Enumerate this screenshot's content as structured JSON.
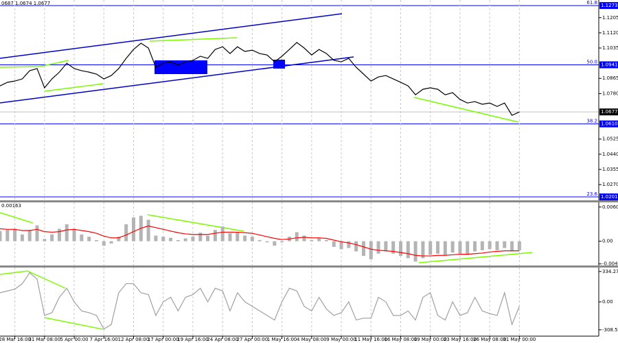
{
  "chart_data": [
    {
      "type": "line",
      "title": "0687 1.0674 1.0677",
      "color": "#000000",
      "x": [
        0,
        1,
        2,
        3,
        4,
        5,
        6,
        7,
        8,
        9,
        10,
        11,
        12,
        13,
        14,
        15,
        16,
        17,
        18,
        19,
        20,
        21,
        22,
        23,
        24,
        25,
        26,
        27,
        28,
        29,
        30,
        31,
        32,
        33,
        34,
        35,
        36,
        37,
        38,
        39,
        40,
        41,
        42,
        43,
        44,
        45,
        46,
        47,
        48,
        49,
        50,
        51,
        52,
        53,
        54,
        55,
        56,
        57,
        58,
        59,
        60,
        61,
        62,
        63,
        64,
        65,
        66,
        67,
        68,
        69,
        70
      ],
      "values": [
        1.0823,
        1.0843,
        1.085,
        1.0862,
        1.0908,
        1.092,
        1.0812,
        1.0862,
        1.09,
        1.095,
        1.092,
        1.0908,
        1.09,
        1.0889,
        1.0862,
        1.0881,
        1.092,
        1.0977,
        1.1027,
        1.1062,
        1.1035,
        1.0927,
        1.095,
        1.0958,
        1.0939,
        1.0958,
        1.0966,
        1.0989,
        1.0977,
        1.1027,
        1.1042,
        1.1004,
        1.1042,
        1.1016,
        1.1023,
        1.1004,
        1.0996,
        1.0958,
        1.0989,
        1.1027,
        1.1066,
        1.1035,
        1.0996,
        1.1027,
        1.1004,
        1.0966,
        1.0958,
        1.0977,
        1.0927,
        1.0889,
        1.085,
        1.0873,
        1.0881,
        1.0862,
        1.0843,
        1.0823,
        1.0773,
        1.0804,
        1.0812,
        1.0804,
        1.0773,
        1.0785,
        1.0747,
        1.0727,
        1.0735,
        1.072,
        1.0727,
        1.0708,
        1.0727,
        1.0658,
        1.0677
      ],
      "xlim": [
        0,
        80.7
      ],
      "ylim": [
        1.0182,
        1.1304
      ],
      "yticks": [
        1.1205,
        {
          "value": 1.112,
          "label": "1.1120"
        },
        1.1035,
        1.0865,
        {
          "value": 1.078,
          "label": "1.0780"
        },
        1.0525,
        {
          "value": 1.044,
          "label": "1.0440"
        },
        1.0355,
        {
          "value": 1.027,
          "label": "1.0270"
        }
      ],
      "levels": [
        {
          "value": 1.1273,
          "ratio": "61.8"
        },
        {
          "value": 1.0941,
          "ratio": "50.0"
        },
        {
          "value": 1.061,
          "label": "1.0610",
          "ratio": "38.2"
        },
        {
          "value": 1.0201,
          "ratio": "23.6"
        }
      ],
      "level_color": "#0000ff",
      "current_price": 1.0677
    },
    {
      "type": "macd",
      "title": "0.00163",
      "x": [
        0,
        1,
        2,
        3,
        4,
        5,
        6,
        7,
        8,
        9,
        10,
        11,
        12,
        13,
        14,
        15,
        16,
        17,
        18,
        19,
        20,
        21,
        22,
        23,
        24,
        25,
        26,
        27,
        28,
        29,
        30,
        31,
        32,
        33,
        34,
        35,
        36,
        37,
        38,
        39,
        40,
        41,
        42,
        43,
        44,
        45,
        46,
        47,
        48,
        49,
        50,
        51,
        52,
        53,
        54,
        55,
        56,
        57,
        58,
        59,
        60,
        61,
        62,
        63,
        64,
        65,
        66,
        67,
        68,
        69,
        70
      ],
      "series": [
        {
          "style": "bar",
          "color": "#b4b4b4",
          "values": [
            0.0018,
            0.002,
            0.0022,
            0.0012,
            0.002,
            0.0028,
            0.0004,
            0.0012,
            0.0022,
            0.003,
            0.0022,
            0.0012,
            0.0008,
            0.0002,
            -0.0008,
            -0.0004,
            0.0008,
            0.003,
            0.0042,
            0.0045,
            0.0038,
            0.001,
            0.0008,
            0.0006,
            0.0002,
            0.0005,
            0.0008,
            0.0015,
            0.001,
            0.002,
            0.0026,
            0.0014,
            0.0016,
            0.001,
            0.0008,
            0.0002,
            -0.0002,
            -0.0008,
            -0.0002,
            0.0008,
            0.0016,
            0.001,
            0.0002,
            0.0006,
            0.0002,
            -0.001,
            -0.0014,
            -0.0012,
            -0.0018,
            -0.0026,
            -0.0032,
            -0.0022,
            -0.0018,
            -0.0022,
            -0.0026,
            -0.003,
            -0.0036,
            -0.003,
            -0.0024,
            -0.0022,
            -0.0024,
            -0.002,
            -0.0022,
            -0.0024,
            -0.0018,
            -0.0016,
            -0.0014,
            -0.0016,
            -0.0012,
            -0.0018,
            -0.0016
          ]
        },
        {
          "style": "line",
          "color": "#ff0000",
          "values": [
            0.0022,
            0.0021,
            0.0021,
            0.0019,
            0.0019,
            0.0021,
            0.0017,
            0.0016,
            0.0017,
            0.002,
            0.0021,
            0.0019,
            0.0017,
            0.0014,
            0.0009,
            0.0006,
            0.0006,
            0.0011,
            0.0017,
            0.0023,
            0.0027,
            0.0024,
            0.0021,
            0.0018,
            0.0015,
            0.0013,
            0.0012,
            0.0012,
            0.0012,
            0.0014,
            0.0016,
            0.0016,
            0.0016,
            0.0015,
            0.0014,
            0.0011,
            0.0008,
            0.0005,
            0.0003,
            0.0004,
            0.0006,
            0.0007,
            0.0006,
            0.0006,
            0.0005,
            0.0002,
            -0.0001,
            -0.0003,
            -0.0006,
            -0.001,
            -0.0014,
            -0.0016,
            -0.0017,
            -0.0018,
            -0.002,
            -0.0022,
            -0.0025,
            -0.0026,
            -0.0026,
            -0.0025,
            -0.0025,
            -0.0024,
            -0.0023,
            -0.0023,
            -0.0022,
            -0.0021,
            -0.0019,
            -0.0018,
            -0.0017,
            -0.0017,
            -0.0017
          ]
        }
      ],
      "xlim": [
        0,
        80.7
      ],
      "ylim": [
        -0.00429,
        0.00687
      ],
      "yticks": [
        0.00605,
        {
          "value": 0,
          "label": "0.00"
        },
        -0.00401
      ]
    },
    {
      "type": "line",
      "color": "#a0a0a0",
      "x": [
        0,
        1,
        2,
        3,
        4,
        5,
        6,
        7,
        8,
        9,
        10,
        11,
        12,
        13,
        14,
        15,
        16,
        17,
        18,
        19,
        20,
        21,
        22,
        23,
        24,
        25,
        26,
        27,
        28,
        29,
        30,
        31,
        32,
        33,
        34,
        35,
        36,
        37,
        38,
        39,
        40,
        41,
        42,
        43,
        44,
        45,
        46,
        47,
        48,
        49,
        50,
        51,
        52,
        53,
        54,
        55,
        56,
        57,
        58,
        59,
        60,
        61,
        62,
        63,
        64,
        65,
        66,
        67,
        68,
        69,
        70
      ],
      "values": [
        100,
        120,
        140,
        200,
        320,
        250,
        -150,
        -120,
        50,
        150,
        0,
        -100,
        -120,
        -150,
        -300,
        -250,
        100,
        200,
        200,
        100,
        80,
        -150,
        0,
        50,
        -100,
        50,
        80,
        150,
        0,
        150,
        120,
        -100,
        100,
        0,
        -50,
        -100,
        -150,
        -200,
        0,
        150,
        120,
        -50,
        -100,
        50,
        -80,
        -150,
        -120,
        0,
        -200,
        -180,
        -180,
        50,
        0,
        -150,
        -150,
        -100,
        -200,
        50,
        100,
        -150,
        -200,
        0,
        -150,
        -120,
        50,
        -100,
        -130,
        -150,
        100,
        -250,
        -50
      ],
      "xlim": [
        0,
        80.7
      ],
      "ylim": [
        -378,
        378
      ],
      "yticks": [
        334.2711,
        {
          "value": 0,
          "label": "0.00"
        },
        -308.568
      ],
      "xticks": [
        {
          "value": 2,
          "label": "28 Mar 16:00"
        },
        {
          "value": 6,
          "label": "31 Mar 08:00"
        },
        {
          "value": 10,
          "label": "5 Apr 00:00"
        },
        {
          "value": 14,
          "label": "7 Apr 16:00"
        },
        {
          "value": 18,
          "label": "12 Apr 08:00"
        },
        {
          "value": 22,
          "label": "17 Apr 00:00"
        },
        {
          "value": 26,
          "label": "19 Apr 16:00"
        },
        {
          "value": 30,
          "label": "24 Apr 08:00"
        },
        {
          "value": 34,
          "label": "27 Apr 00:00"
        },
        {
          "value": 38,
          "label": "1 May 16:00"
        },
        {
          "value": 42,
          "label": "4 May 08:00"
        },
        {
          "value": 46,
          "label": "9 May 00:00"
        },
        {
          "value": 50,
          "label": "11 May 16:00"
        },
        {
          "value": 54,
          "label": "16 May 08:00"
        },
        {
          "value": 58,
          "label": "19 May 00:00"
        },
        {
          "value": 62,
          "label": "23 May 16:00"
        },
        {
          "value": 66,
          "label": "26 May 08:00"
        },
        {
          "value": 70,
          "label": "31 May 00:00"
        }
      ]
    }
  ]
}
